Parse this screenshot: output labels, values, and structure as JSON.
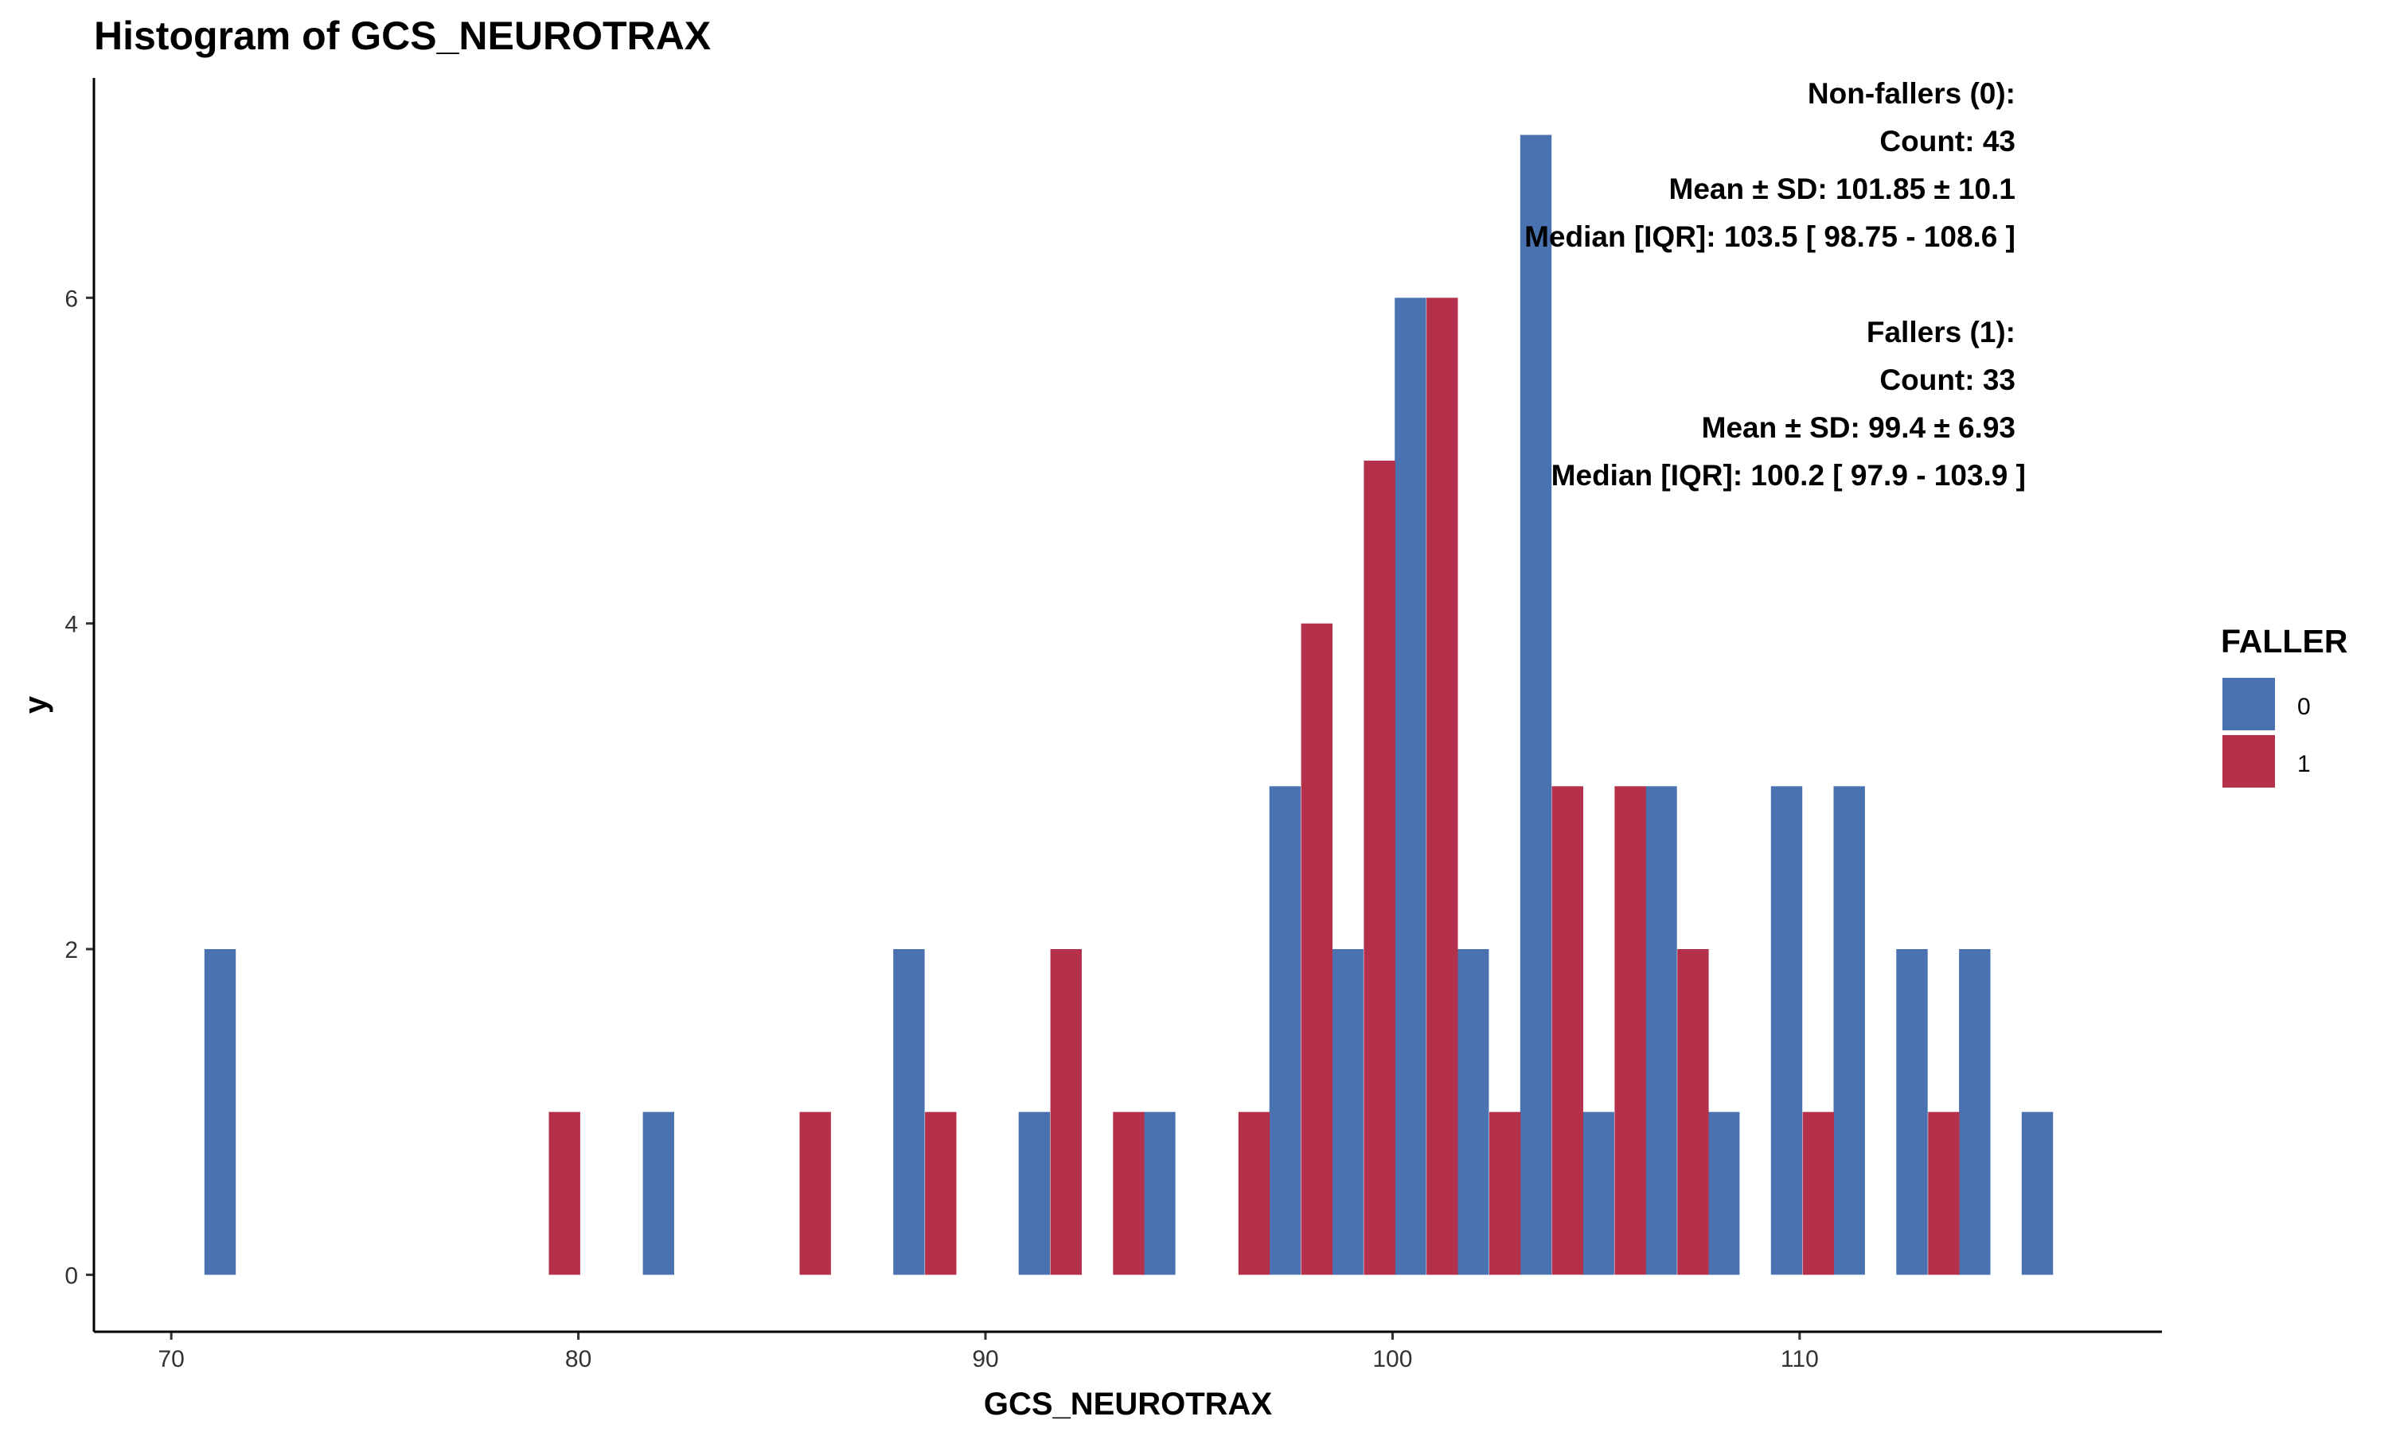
{
  "chart_data": {
    "type": "bar",
    "title": "Histogram of GCS_NEUROTRAX",
    "xlabel": "GCS_NEUROTRAX",
    "ylabel": "y",
    "xlim": [
      68.1,
      118.9
    ],
    "ylim": [
      -0.35,
      7.35
    ],
    "x_ticks": [
      70,
      80,
      90,
      100,
      110
    ],
    "y_ticks": [
      0,
      2,
      4,
      6
    ],
    "grid": false,
    "bin_width": 1.54,
    "legend": {
      "title": "FALLER",
      "placement": "right",
      "entries": [
        {
          "label": "0",
          "color": "#4A72B0"
        },
        {
          "label": "1",
          "color": "#B5314B"
        }
      ]
    },
    "series": [
      {
        "group": "0",
        "color": "#4A72B0",
        "bins": [
          {
            "x": 71.2,
            "count": 2
          },
          {
            "x": 81.97,
            "count": 1
          },
          {
            "x": 88.12,
            "count": 2
          },
          {
            "x": 91.2,
            "count": 1
          },
          {
            "x": 94.28,
            "count": 1
          },
          {
            "x": 97.36,
            "count": 3
          },
          {
            "x": 98.9,
            "count": 2
          },
          {
            "x": 100.44,
            "count": 6
          },
          {
            "x": 101.98,
            "count": 2
          },
          {
            "x": 103.52,
            "count": 7
          },
          {
            "x": 105.06,
            "count": 1
          },
          {
            "x": 106.6,
            "count": 3
          },
          {
            "x": 108.14,
            "count": 1
          },
          {
            "x": 109.68,
            "count": 3
          },
          {
            "x": 111.22,
            "count": 3
          },
          {
            "x": 112.76,
            "count": 2
          },
          {
            "x": 114.3,
            "count": 2
          },
          {
            "x": 115.84,
            "count": 1
          }
        ]
      },
      {
        "group": "1",
        "color": "#B5314B",
        "bins": [
          {
            "x": 79.66,
            "count": 1
          },
          {
            "x": 85.82,
            "count": 1
          },
          {
            "x": 88.9,
            "count": 1
          },
          {
            "x": 91.98,
            "count": 2
          },
          {
            "x": 93.52,
            "count": 1
          },
          {
            "x": 96.6,
            "count": 1
          },
          {
            "x": 98.14,
            "count": 4
          },
          {
            "x": 99.68,
            "count": 5
          },
          {
            "x": 101.22,
            "count": 6
          },
          {
            "x": 102.76,
            "count": 1
          },
          {
            "x": 104.3,
            "count": 3
          },
          {
            "x": 105.84,
            "count": 3
          },
          {
            "x": 107.38,
            "count": 2
          },
          {
            "x": 110.46,
            "count": 1
          },
          {
            "x": 113.54,
            "count": 1
          }
        ]
      }
    ],
    "annotations": [
      "Non-fallers (0):",
      "Count: 43",
      "Mean ± SD: 101.85 ± 10.1",
      "Median [IQR]: 103.5 [ 98.75 - 108.6 ]",
      "Fallers (1):",
      "Count: 33",
      "Mean ± SD: 99.4 ± 6.93",
      "Median [IQR]: 100.2 [ 97.9 - 103.9 ]"
    ]
  }
}
